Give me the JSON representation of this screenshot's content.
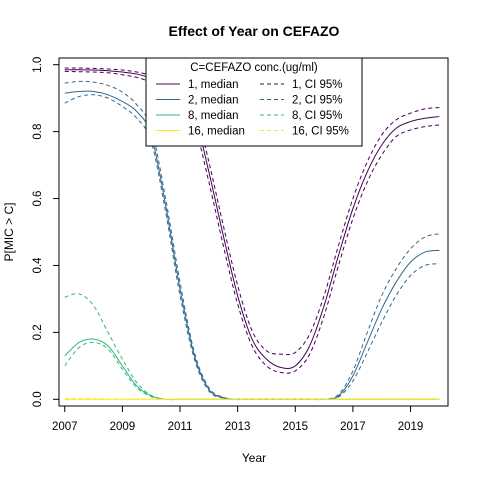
{
  "chart_data": {
    "type": "line",
    "title": "Effect of Year on CEFAZO",
    "xlabel": "Year",
    "ylabel": "P[MIC > C]",
    "xlim": [
      2006.8,
      2020.3
    ],
    "ylim": [
      -0.02,
      1.02
    ],
    "x_ticks": [
      2007,
      2009,
      2011,
      2013,
      2015,
      2017,
      2019
    ],
    "y_ticks": [
      0.0,
      0.2,
      0.4,
      0.6,
      0.8,
      1.0
    ],
    "x_tick_labels": [
      "2007",
      "2009",
      "2011",
      "2013",
      "2015",
      "2017",
      "2019"
    ],
    "y_tick_labels": [
      "0.0",
      "0.2",
      "0.4",
      "0.6",
      "0.8",
      "1.0"
    ],
    "grid": false,
    "legend": {
      "position": "top-center",
      "title": "C=CEFAZO conc.(ug/ml)",
      "entries": [
        {
          "label": "1, median",
          "color": "#440154",
          "dash": false
        },
        {
          "label": "2, median",
          "color": "#31688e",
          "dash": false
        },
        {
          "label": "8, median",
          "color": "#35b779",
          "dash": false
        },
        {
          "label": "16, median",
          "color": "#fde725",
          "dash": false
        },
        {
          "label": "1, CI 95%",
          "color": "#440154",
          "dash": true
        },
        {
          "label": "2, CI 95%",
          "color": "#31688e",
          "dash": true
        },
        {
          "label": "8, CI 95%",
          "color": "#35b779",
          "dash": true
        },
        {
          "label": "16, CI 95%",
          "color": "#fde725",
          "dash": true
        }
      ]
    },
    "x": [
      2007,
      2007.5,
      2008,
      2008.5,
      2009,
      2009.5,
      2010,
      2010.5,
      2011,
      2011.5,
      2012,
      2012.5,
      2013,
      2013.5,
      2014,
      2014.5,
      2015,
      2015.5,
      2016,
      2016.5,
      2017,
      2017.5,
      2018,
      2018.5,
      2019,
      2019.5,
      2020
    ],
    "series": [
      {
        "name": "1, median",
        "color": "#440154",
        "dash": false,
        "values": [
          0.985,
          0.985,
          0.984,
          0.982,
          0.978,
          0.972,
          0.96,
          0.945,
          0.92,
          0.85,
          0.68,
          0.49,
          0.31,
          0.18,
          0.12,
          0.095,
          0.1,
          0.16,
          0.28,
          0.43,
          0.57,
          0.68,
          0.76,
          0.81,
          0.83,
          0.84,
          0.845
        ]
      },
      {
        "name": "1, CI 95% upper",
        "color": "#440154",
        "dash": true,
        "values": [
          0.99,
          0.99,
          0.989,
          0.987,
          0.984,
          0.978,
          0.968,
          0.955,
          0.935,
          0.875,
          0.71,
          0.52,
          0.34,
          0.205,
          0.145,
          0.135,
          0.14,
          0.195,
          0.31,
          0.46,
          0.6,
          0.71,
          0.79,
          0.835,
          0.855,
          0.868,
          0.872
        ]
      },
      {
        "name": "1, CI 95% lower",
        "color": "#440154",
        "dash": true,
        "values": [
          0.98,
          0.979,
          0.978,
          0.976,
          0.97,
          0.962,
          0.948,
          0.93,
          0.9,
          0.82,
          0.65,
          0.46,
          0.285,
          0.16,
          0.1,
          0.08,
          0.085,
          0.135,
          0.25,
          0.4,
          0.54,
          0.65,
          0.73,
          0.785,
          0.805,
          0.815,
          0.82
        ]
      },
      {
        "name": "2, median",
        "color": "#31688e",
        "dash": false,
        "values": [
          0.915,
          0.92,
          0.92,
          0.91,
          0.89,
          0.86,
          0.79,
          0.58,
          0.33,
          0.13,
          0.03,
          0.005,
          0.0,
          0.0,
          0.0,
          0.0,
          0.0,
          0.0,
          0.0,
          0.01,
          0.07,
          0.17,
          0.27,
          0.35,
          0.41,
          0.44,
          0.445
        ]
      },
      {
        "name": "2, CI 95% upper",
        "color": "#31688e",
        "dash": true,
        "values": [
          0.945,
          0.95,
          0.948,
          0.938,
          0.918,
          0.88,
          0.81,
          0.6,
          0.35,
          0.14,
          0.035,
          0.006,
          0.0,
          0.0,
          0.0,
          0.0,
          0.0,
          0.0,
          0.0,
          0.014,
          0.085,
          0.2,
          0.31,
          0.39,
          0.45,
          0.485,
          0.495
        ]
      },
      {
        "name": "2, CI 95% lower",
        "color": "#31688e",
        "dash": true,
        "values": [
          0.885,
          0.905,
          0.91,
          0.9,
          0.875,
          0.84,
          0.77,
          0.56,
          0.31,
          0.12,
          0.025,
          0.004,
          0.0,
          0.0,
          0.0,
          0.0,
          0.0,
          0.0,
          0.0,
          0.007,
          0.055,
          0.14,
          0.23,
          0.31,
          0.37,
          0.4,
          0.405
        ]
      },
      {
        "name": "8, median",
        "color": "#35b779",
        "dash": false,
        "values": [
          0.13,
          0.17,
          0.18,
          0.16,
          0.1,
          0.04,
          0.01,
          0.0,
          0.0,
          0.0,
          0.0,
          0.0,
          0.0,
          0.0,
          0.0,
          0.0,
          0.0,
          0.0,
          0.0,
          0.0,
          0.0,
          0.0,
          0.0,
          0.0,
          0.0,
          0.0,
          0.0
        ]
      },
      {
        "name": "8, CI 95% upper",
        "color": "#35b779",
        "dash": true,
        "values": [
          0.305,
          0.315,
          0.28,
          0.2,
          0.12,
          0.05,
          0.012,
          0.0,
          0.0,
          0.0,
          0.0,
          0.0,
          0.0,
          0.0,
          0.0,
          0.0,
          0.0,
          0.0,
          0.0,
          0.0,
          0.0,
          0.0,
          0.0,
          0.0,
          0.0,
          0.0,
          0.0
        ]
      },
      {
        "name": "8, CI 95% lower",
        "color": "#35b779",
        "dash": true,
        "values": [
          0.1,
          0.155,
          0.17,
          0.15,
          0.09,
          0.035,
          0.008,
          0.0,
          0.0,
          0.0,
          0.0,
          0.0,
          0.0,
          0.0,
          0.0,
          0.0,
          0.0,
          0.0,
          0.0,
          0.0,
          0.0,
          0.0,
          0.0,
          0.0,
          0.0,
          0.0,
          0.0
        ]
      },
      {
        "name": "16, median",
        "color": "#fde725",
        "dash": false,
        "values": [
          0.0,
          0.0,
          0.0,
          0.0,
          0.0,
          0.0,
          0.0,
          0.0,
          0.0,
          0.0,
          0.0,
          0.0,
          0.0,
          0.0,
          0.0,
          0.0,
          0.0,
          0.0,
          0.0,
          0.0,
          0.0,
          0.0,
          0.0,
          0.0,
          0.0,
          0.0,
          0.0
        ]
      },
      {
        "name": "16, CI 95% upper",
        "color": "#fde725",
        "dash": true,
        "values": [
          0.002,
          0.002,
          0.002,
          0.001,
          0.001,
          0.0,
          0.0,
          0.0,
          0.0,
          0.0,
          0.0,
          0.0,
          0.0,
          0.0,
          0.0,
          0.0,
          0.0,
          0.0,
          0.0,
          0.0,
          0.0,
          0.0,
          0.0,
          0.0,
          0.0,
          0.0,
          0.0
        ]
      },
      {
        "name": "16, CI 95% lower",
        "color": "#fde725",
        "dash": true,
        "values": [
          0.0,
          0.0,
          0.0,
          0.0,
          0.0,
          0.0,
          0.0,
          0.0,
          0.0,
          0.0,
          0.0,
          0.0,
          0.0,
          0.0,
          0.0,
          0.0,
          0.0,
          0.0,
          0.0,
          0.0,
          0.0,
          0.0,
          0.0,
          0.0,
          0.0,
          0.0,
          0.0
        ]
      }
    ]
  }
}
